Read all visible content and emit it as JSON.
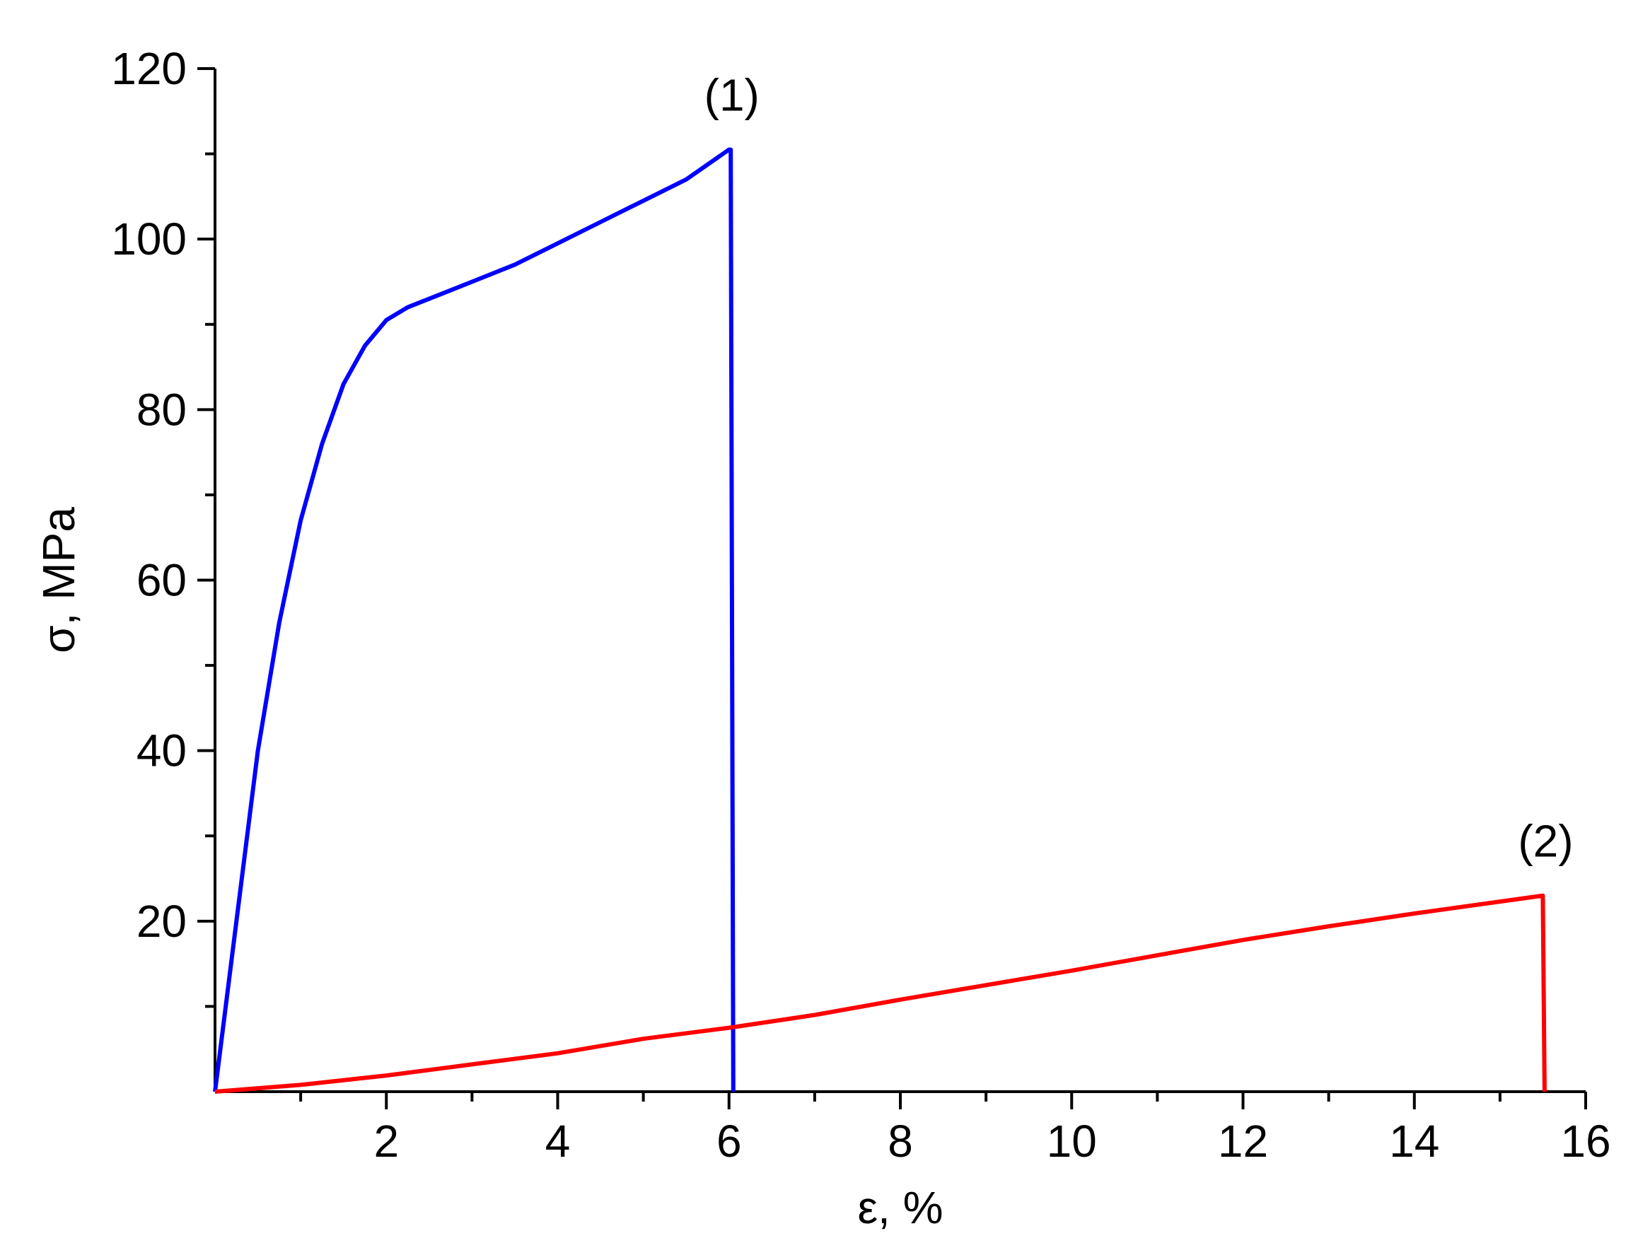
{
  "chart_data": {
    "type": "line",
    "title": "",
    "xlabel": "ε, %",
    "ylabel": "σ, MPa",
    "xlim": [
      0,
      16
    ],
    "ylim": [
      0,
      120
    ],
    "x_ticks": [
      2,
      4,
      6,
      8,
      10,
      12,
      14,
      16
    ],
    "x_minor_ticks": [
      1,
      3,
      5,
      7,
      9,
      11,
      13,
      15
    ],
    "y_ticks": [
      20,
      40,
      60,
      80,
      100,
      120
    ],
    "y_minor_ticks": [
      10,
      30,
      50,
      70,
      90,
      110
    ],
    "grid": false,
    "legend": "none",
    "series": [
      {
        "label": "(1)",
        "color": "#0000ff",
        "x": [
          0,
          0.25,
          0.5,
          0.75,
          1.0,
          1.25,
          1.5,
          1.75,
          2.0,
          2.25,
          2.5,
          3.0,
          3.5,
          4.0,
          4.5,
          5.0,
          5.5,
          6.0,
          6.02,
          6.05
        ],
        "y": [
          0,
          20,
          40,
          55,
          67,
          76,
          83,
          87.5,
          90.5,
          92,
          93,
          95,
          97,
          99.5,
          102,
          104.5,
          107,
          110.5,
          110.5,
          0
        ]
      },
      {
        "label": "(2)",
        "color": "#ff0000",
        "x": [
          0,
          1,
          2,
          3,
          4,
          5,
          6,
          7,
          8,
          9,
          10,
          11,
          12,
          13,
          14,
          15,
          15.5,
          15.52
        ],
        "y": [
          0,
          0.8,
          1.9,
          3.2,
          4.5,
          6.2,
          7.5,
          9,
          10.8,
          12.5,
          14.2,
          16,
          17.8,
          19.4,
          20.9,
          22.3,
          23,
          0
        ]
      }
    ],
    "annotations": [
      {
        "text": "(1)",
        "x": 6.0,
        "y": 110.5
      },
      {
        "text": "(2)",
        "x": 15.5,
        "y": 23
      }
    ]
  }
}
